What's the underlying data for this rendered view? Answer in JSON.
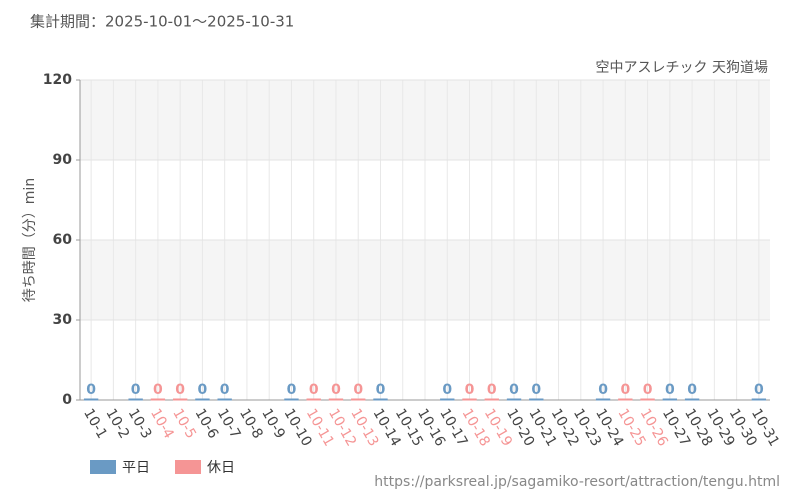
{
  "chart_data": {
    "type": "bar",
    "title": "集計期間：2025-10-01～2025-10-31",
    "subtitle": "空中アスレチック 天狗道場",
    "y_label": "待ち時間（分）min",
    "source": "https://parksreal.jp/sagamiko-resort/attraction/tengu.html",
    "categories": [
      "10-1",
      "10-2",
      "10-3",
      "10-4",
      "10-5",
      "10-6",
      "10-7",
      "10-8",
      "10-9",
      "10-10",
      "10-11",
      "10-12",
      "10-13",
      "10-14",
      "10-15",
      "10-16",
      "10-17",
      "10-18",
      "10-19",
      "10-20",
      "10-21",
      "10-22",
      "10-23",
      "10-24",
      "10-25",
      "10-26",
      "10-27",
      "10-28",
      "10-29",
      "10-30",
      "10-31"
    ],
    "series": [
      {
        "name": "平日",
        "color": "#6a9ac4",
        "values": [
          0,
          null,
          0,
          null,
          null,
          0,
          0,
          null,
          null,
          0,
          null,
          null,
          null,
          0,
          null,
          null,
          0,
          null,
          null,
          0,
          0,
          null,
          null,
          0,
          null,
          null,
          0,
          0,
          null,
          null,
          0
        ]
      },
      {
        "name": "休日",
        "color": "#f59595",
        "values": [
          null,
          null,
          null,
          0,
          0,
          null,
          null,
          null,
          null,
          null,
          0,
          0,
          0,
          null,
          null,
          null,
          null,
          0,
          0,
          null,
          null,
          null,
          null,
          null,
          0,
          0,
          null,
          null,
          null,
          null,
          null
        ]
      }
    ],
    "ylim": [
      0,
      120
    ],
    "yticks": [
      0,
      30,
      60,
      90,
      120
    ],
    "grid": true
  }
}
